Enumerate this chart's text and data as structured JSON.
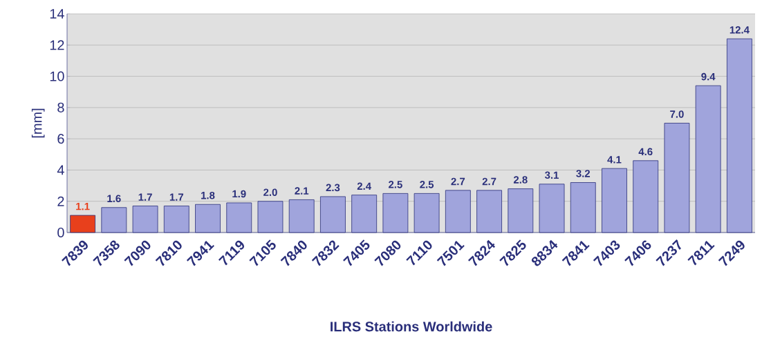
{
  "chart_data": {
    "type": "bar",
    "xlabel": "ILRS Stations Worldwide",
    "ylabel": "[mm]",
    "categories": [
      "7839",
      "7358",
      "7090",
      "7810",
      "7941",
      "7119",
      "7105",
      "7840",
      "7832",
      "7405",
      "7080",
      "7110",
      "7501",
      "7824",
      "7825",
      "8834",
      "7841",
      "7403",
      "7406",
      "7237",
      "7811",
      "7249"
    ],
    "values": [
      1.1,
      1.6,
      1.7,
      1.7,
      1.8,
      1.9,
      2.0,
      2.1,
      2.3,
      2.4,
      2.5,
      2.5,
      2.7,
      2.7,
      2.8,
      3.1,
      3.2,
      4.1,
      4.6,
      7.0,
      9.4,
      12.4
    ],
    "colors": [
      "#e8401c",
      "#a0a4dc",
      "#a0a4dc",
      "#a0a4dc",
      "#a0a4dc",
      "#a0a4dc",
      "#a0a4dc",
      "#a0a4dc",
      "#a0a4dc",
      "#a0a4dc",
      "#a0a4dc",
      "#a0a4dc",
      "#a0a4dc",
      "#a0a4dc",
      "#a0a4dc",
      "#a0a4dc",
      "#a0a4dc",
      "#a0a4dc",
      "#a0a4dc",
      "#a0a4dc",
      "#a0a4dc",
      "#a0a4dc"
    ],
    "value_labels": [
      "1.1",
      "1.6",
      "1.7",
      "1.7",
      "1.8",
      "1.9",
      "2.0",
      "2.1",
      "2.3",
      "2.4",
      "2.5",
      "2.5",
      "2.7",
      "2.7",
      "2.8",
      "3.1",
      "3.2",
      "4.1",
      "4.6",
      "7.0",
      "9.4",
      "12.4"
    ],
    "ylim": [
      0,
      14
    ],
    "yticks": [
      0,
      2,
      4,
      6,
      8,
      10,
      12,
      14
    ],
    "grid": "y"
  }
}
